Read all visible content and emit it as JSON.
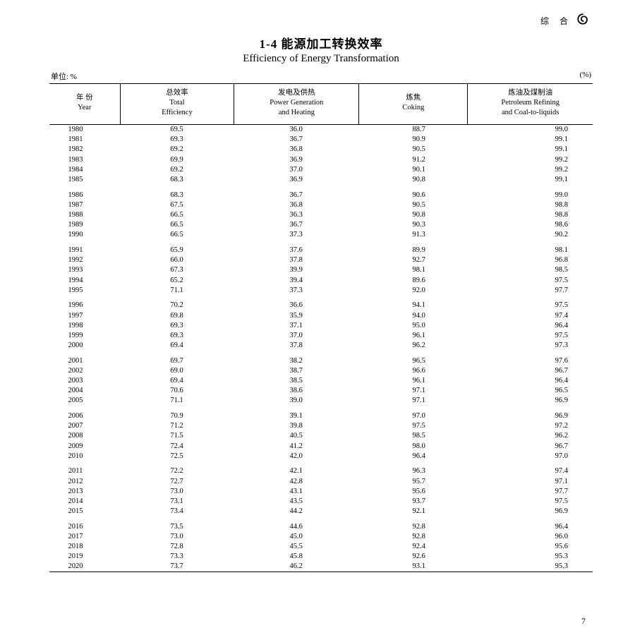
{
  "header_marker": "综  合",
  "title_cn": "1-4  能源加工转换效率",
  "title_en": "Efficiency of Energy Transformation",
  "unit_left": "单位: %",
  "unit_right": "(%)",
  "page_number": "7",
  "columns": [
    {
      "cn": "年 份",
      "en": "Year"
    },
    {
      "cn": "总效率",
      "en": "Total\nEfficiency"
    },
    {
      "cn": "发电及供热",
      "en": "Power Generation\nand Heating"
    },
    {
      "cn": "炼焦",
      "en": "Coking"
    },
    {
      "cn": "炼油及煤制油",
      "en": "Petroleum Refining\nand Coal-to-liquids"
    }
  ],
  "rows": [
    {
      "year": "1980",
      "v1": "69.5",
      "v2": "36.0",
      "v3": "88.7",
      "v4": "99.0",
      "gap": false
    },
    {
      "year": "1981",
      "v1": "69.3",
      "v2": "36.7",
      "v3": "90.9",
      "v4": "99.1",
      "gap": false
    },
    {
      "year": "1982",
      "v1": "69.2",
      "v2": "36.8",
      "v3": "90.5",
      "v4": "99.1",
      "gap": false
    },
    {
      "year": "1983",
      "v1": "69.9",
      "v2": "36.9",
      "v3": "91.2",
      "v4": "99.2",
      "gap": false
    },
    {
      "year": "1984",
      "v1": "69.2",
      "v2": "37.0",
      "v3": "90.1",
      "v4": "99.2",
      "gap": false
    },
    {
      "year": "1985",
      "v1": "68.3",
      "v2": "36.9",
      "v3": "90.8",
      "v4": "99.1",
      "gap": false
    },
    {
      "year": "1986",
      "v1": "68.3",
      "v2": "36.7",
      "v3": "90.6",
      "v4": "99.0",
      "gap": true
    },
    {
      "year": "1987",
      "v1": "67.5",
      "v2": "36.8",
      "v3": "90.5",
      "v4": "98.8",
      "gap": false
    },
    {
      "year": "1988",
      "v1": "66.5",
      "v2": "36.3",
      "v3": "90.8",
      "v4": "98.8",
      "gap": false
    },
    {
      "year": "1989",
      "v1": "66.5",
      "v2": "36.7",
      "v3": "90.3",
      "v4": "98.6",
      "gap": false
    },
    {
      "year": "1990",
      "v1": "66.5",
      "v2": "37.3",
      "v3": "91.3",
      "v4": "90.2",
      "gap": false
    },
    {
      "year": "1991",
      "v1": "65.9",
      "v2": "37.6",
      "v3": "89.9",
      "v4": "98.1",
      "gap": true
    },
    {
      "year": "1992",
      "v1": "66.0",
      "v2": "37.8",
      "v3": "92.7",
      "v4": "96.8",
      "gap": false
    },
    {
      "year": "1993",
      "v1": "67.3",
      "v2": "39.9",
      "v3": "98.1",
      "v4": "98.5",
      "gap": false
    },
    {
      "year": "1994",
      "v1": "65.2",
      "v2": "39.4",
      "v3": "89.6",
      "v4": "97.5",
      "gap": false
    },
    {
      "year": "1995",
      "v1": "71.1",
      "v2": "37.3",
      "v3": "92.0",
      "v4": "97.7",
      "gap": false
    },
    {
      "year": "1996",
      "v1": "70.2",
      "v2": "36.6",
      "v3": "94.1",
      "v4": "97.5",
      "gap": true
    },
    {
      "year": "1997",
      "v1": "69.8",
      "v2": "35.9",
      "v3": "94.0",
      "v4": "97.4",
      "gap": false
    },
    {
      "year": "1998",
      "v1": "69.3",
      "v2": "37.1",
      "v3": "95.0",
      "v4": "96.4",
      "gap": false
    },
    {
      "year": "1999",
      "v1": "69.3",
      "v2": "37.0",
      "v3": "96.1",
      "v4": "97.5",
      "gap": false
    },
    {
      "year": "2000",
      "v1": "69.4",
      "v2": "37.8",
      "v3": "96.2",
      "v4": "97.3",
      "gap": false
    },
    {
      "year": "2001",
      "v1": "69.7",
      "v2": "38.2",
      "v3": "96.5",
      "v4": "97.6",
      "gap": true
    },
    {
      "year": "2002",
      "v1": "69.0",
      "v2": "38.7",
      "v3": "96.6",
      "v4": "96.7",
      "gap": false
    },
    {
      "year": "2003",
      "v1": "69.4",
      "v2": "38.5",
      "v3": "96.1",
      "v4": "96.4",
      "gap": false
    },
    {
      "year": "2004",
      "v1": "70.6",
      "v2": "38.6",
      "v3": "97.1",
      "v4": "96.5",
      "gap": false
    },
    {
      "year": "2005",
      "v1": "71.1",
      "v2": "39.0",
      "v3": "97.1",
      "v4": "96.9",
      "gap": false
    },
    {
      "year": "2006",
      "v1": "70.9",
      "v2": "39.1",
      "v3": "97.0",
      "v4": "96.9",
      "gap": true
    },
    {
      "year": "2007",
      "v1": "71.2",
      "v2": "39.8",
      "v3": "97.5",
      "v4": "97.2",
      "gap": false
    },
    {
      "year": "2008",
      "v1": "71.5",
      "v2": "40.5",
      "v3": "98.5",
      "v4": "96.2",
      "gap": false
    },
    {
      "year": "2009",
      "v1": "72.4",
      "v2": "41.2",
      "v3": "98.0",
      "v4": "96.7",
      "gap": false
    },
    {
      "year": "2010",
      "v1": "72.5",
      "v2": "42.0",
      "v3": "96.4",
      "v4": "97.0",
      "gap": false
    },
    {
      "year": "2011",
      "v1": "72.2",
      "v2": "42.1",
      "v3": "96.3",
      "v4": "97.4",
      "gap": true
    },
    {
      "year": "2012",
      "v1": "72.7",
      "v2": "42.8",
      "v3": "95.7",
      "v4": "97.1",
      "gap": false
    },
    {
      "year": "2013",
      "v1": "73.0",
      "v2": "43.1",
      "v3": "95.6",
      "v4": "97.7",
      "gap": false
    },
    {
      "year": "2014",
      "v1": "73.1",
      "v2": "43.5",
      "v3": "93.7",
      "v4": "97.5",
      "gap": false
    },
    {
      "year": "2015",
      "v1": "73.4",
      "v2": "44.2",
      "v3": "92.1",
      "v4": "96.9",
      "gap": false
    },
    {
      "year": "2016",
      "v1": "73.5",
      "v2": "44.6",
      "v3": "92.8",
      "v4": "96.4",
      "gap": true
    },
    {
      "year": "2017",
      "v1": "73.0",
      "v2": "45.0",
      "v3": "92.8",
      "v4": "96.0",
      "gap": false
    },
    {
      "year": "2018",
      "v1": "72.8",
      "v2": "45.5",
      "v3": "92.4",
      "v4": "95.6",
      "gap": false
    },
    {
      "year": "2019",
      "v1": "73.3",
      "v2": "45.8",
      "v3": "92.6",
      "v4": "95.3",
      "gap": false
    },
    {
      "year": "2020",
      "v1": "73.7",
      "v2": "46.2",
      "v3": "93.1",
      "v4": "95.3",
      "gap": false
    }
  ]
}
